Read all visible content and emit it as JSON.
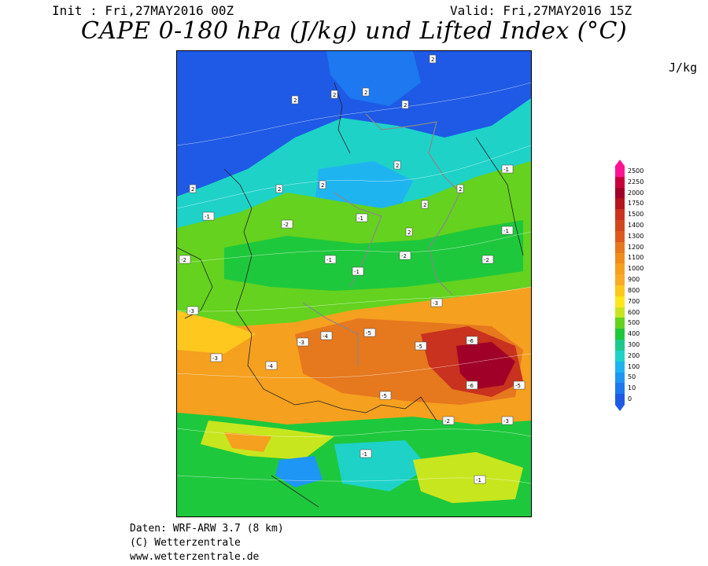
{
  "header": {
    "init": "Init : Fri,27MAY2016 00Z",
    "valid": "Valid: Fri,27MAY2016 15Z",
    "title": "CAPE 0-180 hPa (J/kg) und Lifted Index (°C)"
  },
  "unit_label": "J/kg",
  "colorbar": {
    "levels": [
      "2500",
      "2250",
      "2000",
      "1750",
      "1500",
      "1400",
      "1300",
      "1200",
      "1100",
      "1000",
      "900",
      "800",
      "700",
      "600",
      "500",
      "400",
      "300",
      "200",
      "100",
      "50",
      "10",
      "0"
    ],
    "colors": [
      "#ff1493",
      "#c8003c",
      "#a00028",
      "#b4141e",
      "#c8321e",
      "#d2461e",
      "#dc5a1e",
      "#e6781e",
      "#f08c1e",
      "#f5a01e",
      "#faaa28",
      "#ffc81e",
      "#ffe61e",
      "#c8e61e",
      "#64d21e",
      "#1ec83c",
      "#1ec88c",
      "#1ed2c8",
      "#1eb4f0",
      "#1e96f5",
      "#1e78f0",
      "#1e5ae6"
    ]
  },
  "lifted_index_labels": [
    "2",
    "2",
    "2",
    "2",
    "2",
    "2",
    "2",
    "2",
    "2",
    "2",
    "2",
    "2",
    "-1",
    "-1",
    "-1",
    "-1",
    "-1",
    "-1",
    "-1",
    "-1",
    "-2",
    "-2",
    "-2",
    "-2",
    "-2",
    "-3",
    "-3",
    "-3",
    "-3",
    "-3",
    "-4",
    "-4",
    "-5",
    "-5",
    "-5",
    "-5",
    "-6",
    "-6"
  ],
  "footer": {
    "line1": "Daten: WRF-ARW 3.7 (8 km)",
    "line2": "(C) Wetterzentrale",
    "line3": "www.wetterzentrale.de"
  }
}
